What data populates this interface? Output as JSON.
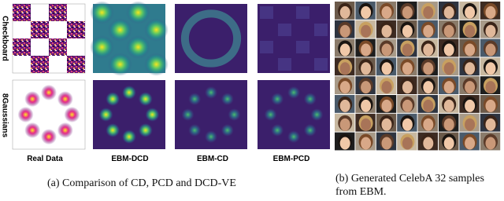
{
  "panel_a": {
    "row_labels": [
      "Checkboard",
      "8Gaussians"
    ],
    "column_labels": [
      "Real Data",
      "EBM-DCD",
      "EBM-CD",
      "EBM-PCD"
    ],
    "caption": "(a) Comparison of CD, PCD and DCD-VE"
  },
  "panel_b": {
    "caption": "(b) Generated CelebA 32 samples from EBM."
  }
}
